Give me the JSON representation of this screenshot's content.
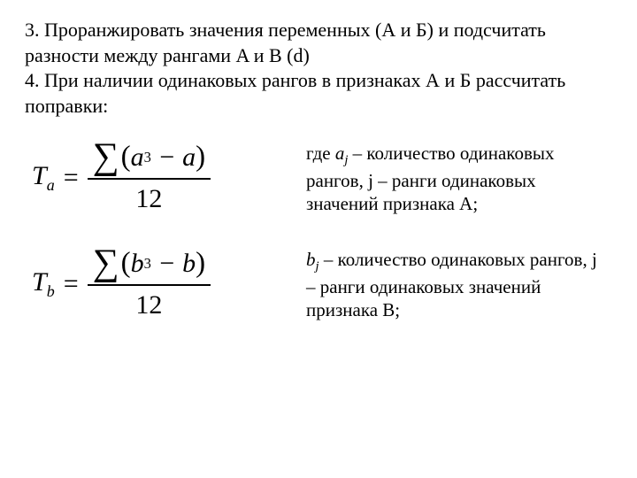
{
  "text_color": "#000000",
  "background_color": "#ffffff",
  "intro": {
    "line_3": "3. Проранжировать значения переменных (А и Б) и подсчитать разности между рангами A и B (d)",
    "line_4": "4. При наличии одинаковых рангов в признаках А и Б рассчитать поправки:"
  },
  "formulas": [
    {
      "lhs_var": "T",
      "lhs_sub": "a",
      "num_var": "a",
      "num_sup": "3",
      "num_minus_var": "a",
      "den": "12",
      "desc_prefix": "где ",
      "desc_var": "a",
      "desc_var_sub": "j",
      "desc_tail": " – количество одинаковых рангов, j – ранги одинаковых значений признака А;"
    },
    {
      "lhs_var": "T",
      "lhs_sub": "b",
      "num_var": "b",
      "num_sup": "3",
      "num_minus_var": "b",
      "den": "12",
      "desc_prefix": "",
      "desc_var": "b",
      "desc_var_sub": "j",
      "desc_tail": " – количество одинаковых рангов, j – ранги одинаковых значений признака B;"
    }
  ]
}
